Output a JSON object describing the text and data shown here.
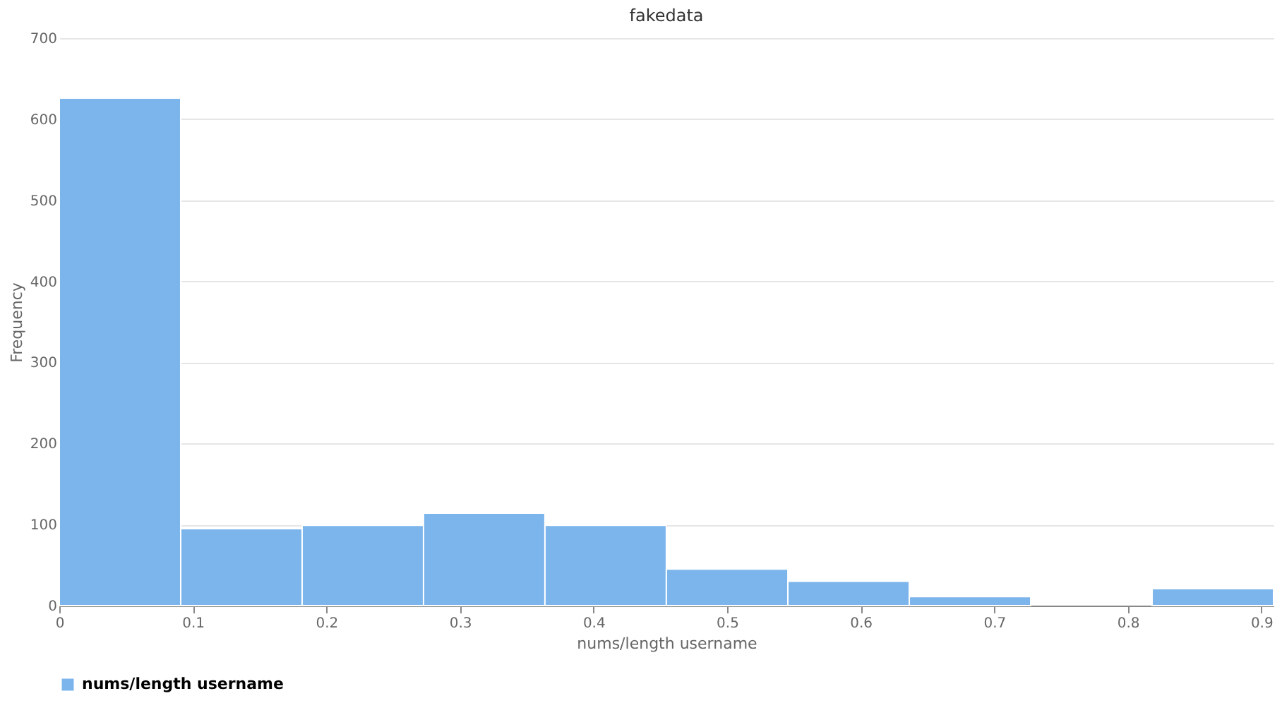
{
  "chart_data": {
    "type": "histogram",
    "title": "fakedata",
    "xlabel": "nums/length username",
    "ylabel": "Frequency",
    "bins": [
      0,
      0.0909,
      0.1818,
      0.2727,
      0.3636,
      0.4545,
      0.5455,
      0.6364,
      0.7273,
      0.8182,
      0.9091
    ],
    "series": [
      {
        "name": "nums/length username",
        "color": "#7cb5ec",
        "values": [
          626,
          95,
          99,
          114,
          99,
          45,
          30,
          11,
          null,
          21
        ]
      }
    ],
    "xlim": [
      0,
      0.9091
    ],
    "xticks": [
      0,
      0.1,
      0.2,
      0.3,
      0.4,
      0.5,
      0.6,
      0.7,
      0.8,
      0.9
    ],
    "ylim": [
      0,
      700
    ],
    "yticks": [
      0,
      100,
      200,
      300,
      400,
      500,
      600,
      700
    ],
    "grid": "y",
    "legend": "bottom"
  }
}
